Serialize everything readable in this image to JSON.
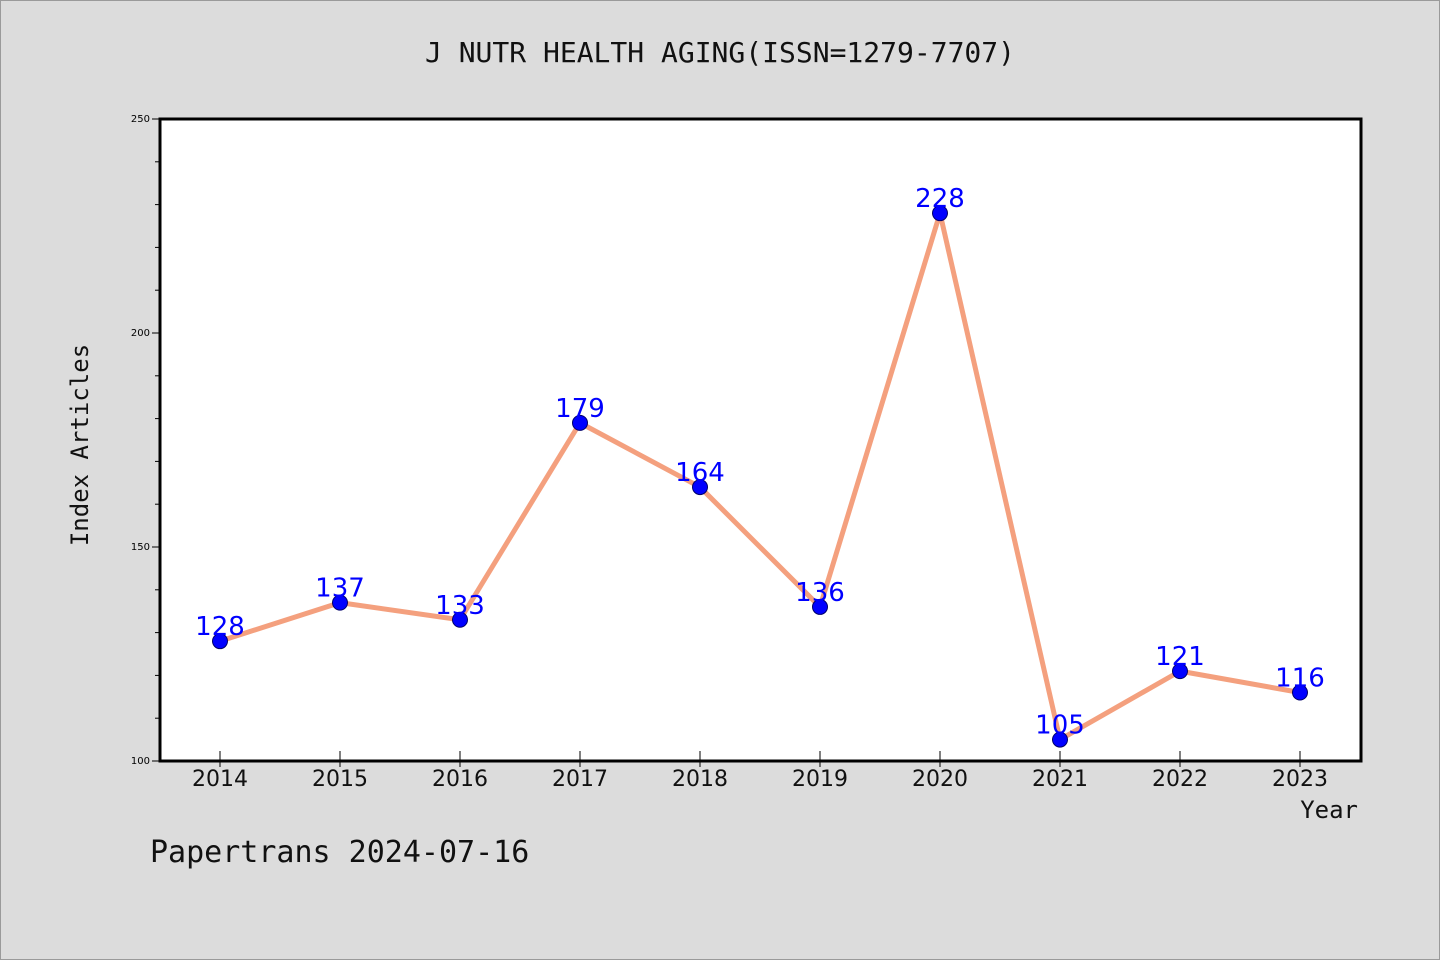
{
  "chart_data": {
    "type": "line",
    "title": "J NUTR HEALTH AGING(ISSN=1279-7707)",
    "xlabel": "Year",
    "ylabel": "Index Articles",
    "categories": [
      "2014",
      "2015",
      "2016",
      "2017",
      "2018",
      "2019",
      "2020",
      "2021",
      "2022",
      "2023"
    ],
    "series": [
      {
        "values": [
          128,
          137,
          133,
          179,
          164,
          136,
          228,
          105,
          121,
          116
        ]
      }
    ],
    "ylim": [
      100,
      250
    ],
    "y_ticks": [
      "100",
      "150",
      "200",
      "250"
    ],
    "grid": false,
    "data_labels": true,
    "colors": {
      "line": "#f4a07e",
      "marker": "#0000ff",
      "label": "#0000ff"
    }
  },
  "footer": {
    "credit": "Papertrans 2024-07-16"
  }
}
